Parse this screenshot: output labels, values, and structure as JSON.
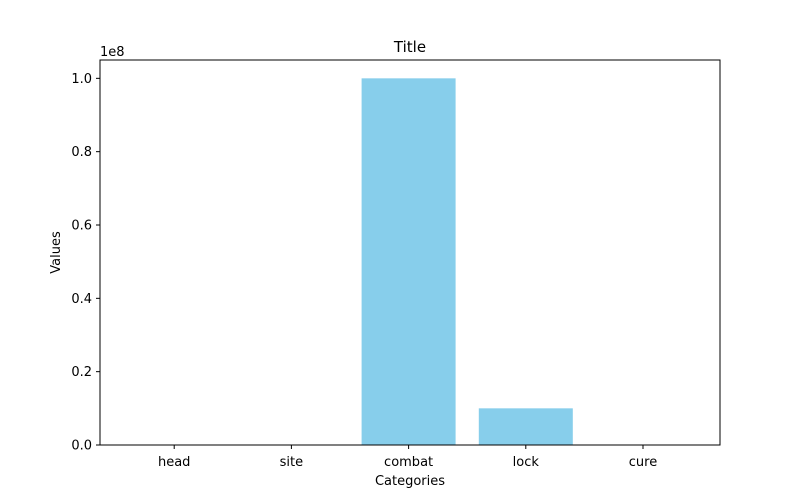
{
  "chart_data": {
    "type": "bar",
    "title": "Title",
    "xlabel": "Categories",
    "ylabel": "Values",
    "y_scale_label": "1e8",
    "categories": [
      "head",
      "site",
      "combat",
      "lock",
      "cure"
    ],
    "values": [
      0,
      0,
      100000000,
      10000000,
      0
    ],
    "ylim": [
      0,
      105000000
    ],
    "yticks": [
      0,
      20000000,
      40000000,
      60000000,
      80000000,
      100000000
    ],
    "ytick_labels": [
      "0.0",
      "0.2",
      "0.4",
      "0.6",
      "0.8",
      "1.0"
    ],
    "bar_color": "#87ceeb",
    "grid": false,
    "legend": "none"
  }
}
